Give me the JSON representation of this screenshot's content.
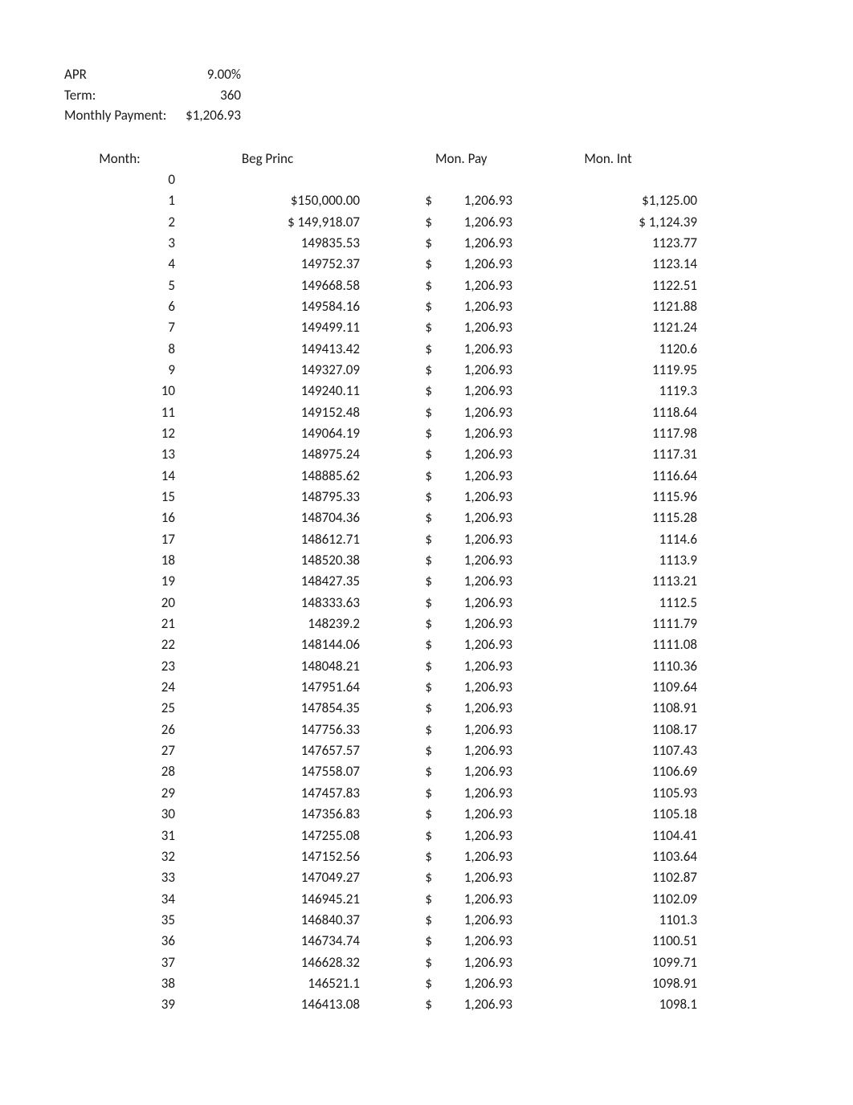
{
  "summary": {
    "apr_label": "APR",
    "apr_value": "9.00%",
    "term_label": "Term:",
    "term_value": "360",
    "mp_label": "Monthly Payment:",
    "mp_value": "$1,206.93"
  },
  "headers": {
    "month": "Month:",
    "beg_princ": "Beg Princ",
    "mon_pay": "Mon. Pay",
    "mon_int": "Mon. Int"
  },
  "rows": [
    {
      "month": "0",
      "princ": "",
      "paysym": "",
      "payval": "",
      "int": ""
    },
    {
      "month": "1",
      "princ": "$150,000.00",
      "paysym": "$",
      "payval": "1,206.93",
      "int": "$1,125.00"
    },
    {
      "month": "2",
      "princ": "$ 149,918.07",
      "paysym": "$",
      "payval": "1,206.93",
      "int": "$    1,124.39"
    },
    {
      "month": "3",
      "princ": "149835.53",
      "paysym": "$",
      "payval": "1,206.93",
      "int": "1123.77"
    },
    {
      "month": "4",
      "princ": "149752.37",
      "paysym": "$",
      "payval": "1,206.93",
      "int": "1123.14"
    },
    {
      "month": "5",
      "princ": "149668.58",
      "paysym": "$",
      "payval": "1,206.93",
      "int": "1122.51"
    },
    {
      "month": "6",
      "princ": "149584.16",
      "paysym": "$",
      "payval": "1,206.93",
      "int": "1121.88"
    },
    {
      "month": "7",
      "princ": "149499.11",
      "paysym": "$",
      "payval": "1,206.93",
      "int": "1121.24"
    },
    {
      "month": "8",
      "princ": "149413.42",
      "paysym": "$",
      "payval": "1,206.93",
      "int": "1120.6"
    },
    {
      "month": "9",
      "princ": "149327.09",
      "paysym": "$",
      "payval": "1,206.93",
      "int": "1119.95"
    },
    {
      "month": "10",
      "princ": "149240.11",
      "paysym": "$",
      "payval": "1,206.93",
      "int": "1119.3"
    },
    {
      "month": "11",
      "princ": "149152.48",
      "paysym": "$",
      "payval": "1,206.93",
      "int": "1118.64"
    },
    {
      "month": "12",
      "princ": "149064.19",
      "paysym": "$",
      "payval": "1,206.93",
      "int": "1117.98"
    },
    {
      "month": "13",
      "princ": "148975.24",
      "paysym": "$",
      "payval": "1,206.93",
      "int": "1117.31"
    },
    {
      "month": "14",
      "princ": "148885.62",
      "paysym": "$",
      "payval": "1,206.93",
      "int": "1116.64"
    },
    {
      "month": "15",
      "princ": "148795.33",
      "paysym": "$",
      "payval": "1,206.93",
      "int": "1115.96"
    },
    {
      "month": "16",
      "princ": "148704.36",
      "paysym": "$",
      "payval": "1,206.93",
      "int": "1115.28"
    },
    {
      "month": "17",
      "princ": "148612.71",
      "paysym": "$",
      "payval": "1,206.93",
      "int": "1114.6"
    },
    {
      "month": "18",
      "princ": "148520.38",
      "paysym": "$",
      "payval": "1,206.93",
      "int": "1113.9"
    },
    {
      "month": "19",
      "princ": "148427.35",
      "paysym": "$",
      "payval": "1,206.93",
      "int": "1113.21"
    },
    {
      "month": "20",
      "princ": "148333.63",
      "paysym": "$",
      "payval": "1,206.93",
      "int": "1112.5"
    },
    {
      "month": "21",
      "princ": "148239.2",
      "paysym": "$",
      "payval": "1,206.93",
      "int": "1111.79"
    },
    {
      "month": "22",
      "princ": "148144.06",
      "paysym": "$",
      "payval": "1,206.93",
      "int": "1111.08"
    },
    {
      "month": "23",
      "princ": "148048.21",
      "paysym": "$",
      "payval": "1,206.93",
      "int": "1110.36"
    },
    {
      "month": "24",
      "princ": "147951.64",
      "paysym": "$",
      "payval": "1,206.93",
      "int": "1109.64"
    },
    {
      "month": "25",
      "princ": "147854.35",
      "paysym": "$",
      "payval": "1,206.93",
      "int": "1108.91"
    },
    {
      "month": "26",
      "princ": "147756.33",
      "paysym": "$",
      "payval": "1,206.93",
      "int": "1108.17"
    },
    {
      "month": "27",
      "princ": "147657.57",
      "paysym": "$",
      "payval": "1,206.93",
      "int": "1107.43"
    },
    {
      "month": "28",
      "princ": "147558.07",
      "paysym": "$",
      "payval": "1,206.93",
      "int": "1106.69"
    },
    {
      "month": "29",
      "princ": "147457.83",
      "paysym": "$",
      "payval": "1,206.93",
      "int": "1105.93"
    },
    {
      "month": "30",
      "princ": "147356.83",
      "paysym": "$",
      "payval": "1,206.93",
      "int": "1105.18"
    },
    {
      "month": "31",
      "princ": "147255.08",
      "paysym": "$",
      "payval": "1,206.93",
      "int": "1104.41"
    },
    {
      "month": "32",
      "princ": "147152.56",
      "paysym": "$",
      "payval": "1,206.93",
      "int": "1103.64"
    },
    {
      "month": "33",
      "princ": "147049.27",
      "paysym": "$",
      "payval": "1,206.93",
      "int": "1102.87"
    },
    {
      "month": "34",
      "princ": "146945.21",
      "paysym": "$",
      "payval": "1,206.93",
      "int": "1102.09"
    },
    {
      "month": "35",
      "princ": "146840.37",
      "paysym": "$",
      "payval": "1,206.93",
      "int": "1101.3"
    },
    {
      "month": "36",
      "princ": "146734.74",
      "paysym": "$",
      "payval": "1,206.93",
      "int": "1100.51"
    },
    {
      "month": "37",
      "princ": "146628.32",
      "paysym": "$",
      "payval": "1,206.93",
      "int": "1099.71"
    },
    {
      "month": "38",
      "princ": "146521.1",
      "paysym": "$",
      "payval": "1,206.93",
      "int": "1098.91"
    },
    {
      "month": "39",
      "princ": "146413.08",
      "paysym": "$",
      "payval": "1,206.93",
      "int": "1098.1"
    }
  ]
}
